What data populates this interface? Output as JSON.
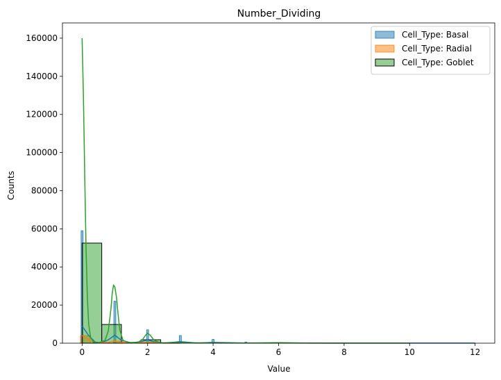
{
  "chart_data": {
    "type": "histogram",
    "title": "Number_Dividing",
    "xlabel": "Value",
    "ylabel": "Counts",
    "xlim": [
      -0.6,
      12.6
    ],
    "ylim": [
      0,
      168000
    ],
    "xticks": [
      0,
      2,
      4,
      6,
      8,
      10,
      12
    ],
    "yticks": [
      0,
      20000,
      40000,
      60000,
      80000,
      100000,
      120000,
      140000,
      160000
    ],
    "legend_position": "top-right",
    "grid": false,
    "series": [
      {
        "name": "Cell_Type: Basal",
        "color": "#1f77b4",
        "bars": [
          {
            "x0": -0.03,
            "x1": 0.03,
            "value": 59000
          },
          {
            "x0": 0.97,
            "x1": 1.03,
            "value": 22000
          },
          {
            "x0": 1.97,
            "x1": 2.03,
            "value": 7000
          },
          {
            "x0": 2.97,
            "x1": 3.03,
            "value": 4000
          },
          {
            "x0": 3.97,
            "x1": 4.03,
            "value": 2000
          },
          {
            "x0": 4.97,
            "x1": 5.03,
            "value": 600
          },
          {
            "x0": 5.97,
            "x1": 6.03,
            "value": 300
          }
        ],
        "kde": [
          [
            0,
            9000
          ],
          [
            0.2,
            4000
          ],
          [
            0.4,
            600
          ],
          [
            0.6,
            200
          ],
          [
            0.8,
            1800
          ],
          [
            1,
            4200
          ],
          [
            1.2,
            1500
          ],
          [
            1.5,
            200
          ],
          [
            1.8,
            800
          ],
          [
            2,
            1700
          ],
          [
            2.2,
            700
          ],
          [
            2.5,
            100
          ],
          [
            3,
            800
          ],
          [
            3.5,
            100
          ],
          [
            4,
            400
          ],
          [
            5,
            100
          ],
          [
            6,
            100
          ],
          [
            8,
            50
          ],
          [
            10,
            50
          ],
          [
            12,
            20
          ]
        ]
      },
      {
        "name": "Cell_Type: Radial",
        "color": "#ff7f0e",
        "bars": [
          {
            "x0": -0.05,
            "x1": 0.25,
            "value": 4000
          },
          {
            "x0": 0.95,
            "x1": 1.25,
            "value": 1000
          },
          {
            "x0": 1.95,
            "x1": 2.25,
            "value": 500
          }
        ],
        "kde": [
          [
            0,
            4000
          ],
          [
            0.15,
            2500
          ],
          [
            0.3,
            700
          ],
          [
            0.5,
            100
          ],
          [
            0.8,
            400
          ],
          [
            1,
            1200
          ],
          [
            1.2,
            400
          ],
          [
            1.5,
            50
          ],
          [
            2,
            400
          ],
          [
            2.5,
            20
          ],
          [
            3,
            0
          ]
        ]
      },
      {
        "name": "Cell_Type: Goblet",
        "color": "#2ca02c",
        "bars": [
          {
            "x0": 0,
            "x1": 0.6,
            "value": 52500
          },
          {
            "x0": 0.6,
            "x1": 1.2,
            "value": 9800
          },
          {
            "x0": 1.2,
            "x1": 1.8,
            "value": 400
          },
          {
            "x0": 1.8,
            "x1": 2.4,
            "value": 1800
          }
        ],
        "kde": [
          [
            0,
            160000
          ],
          [
            0.04,
            130000
          ],
          [
            0.08,
            88000
          ],
          [
            0.12,
            50000
          ],
          [
            0.16,
            24000
          ],
          [
            0.2,
            10000
          ],
          [
            0.26,
            3000
          ],
          [
            0.35,
            500
          ],
          [
            0.5,
            200
          ],
          [
            0.7,
            1500
          ],
          [
            0.8,
            6500
          ],
          [
            0.88,
            18000
          ],
          [
            0.92,
            26000
          ],
          [
            0.96,
            30500
          ],
          [
            1.0,
            29500
          ],
          [
            1.05,
            24000
          ],
          [
            1.1,
            15000
          ],
          [
            1.15,
            7000
          ],
          [
            1.25,
            1500
          ],
          [
            1.4,
            300
          ],
          [
            1.7,
            400
          ],
          [
            1.85,
            2000
          ],
          [
            1.95,
            4500
          ],
          [
            2.0,
            5200
          ],
          [
            2.08,
            4200
          ],
          [
            2.2,
            1500
          ],
          [
            2.4,
            200
          ],
          [
            3,
            300
          ],
          [
            4,
            100
          ],
          [
            5,
            80
          ],
          [
            6,
            300
          ],
          [
            7,
            50
          ],
          [
            8,
            50
          ],
          [
            9,
            30
          ],
          [
            10,
            30
          ]
        ]
      }
    ]
  }
}
